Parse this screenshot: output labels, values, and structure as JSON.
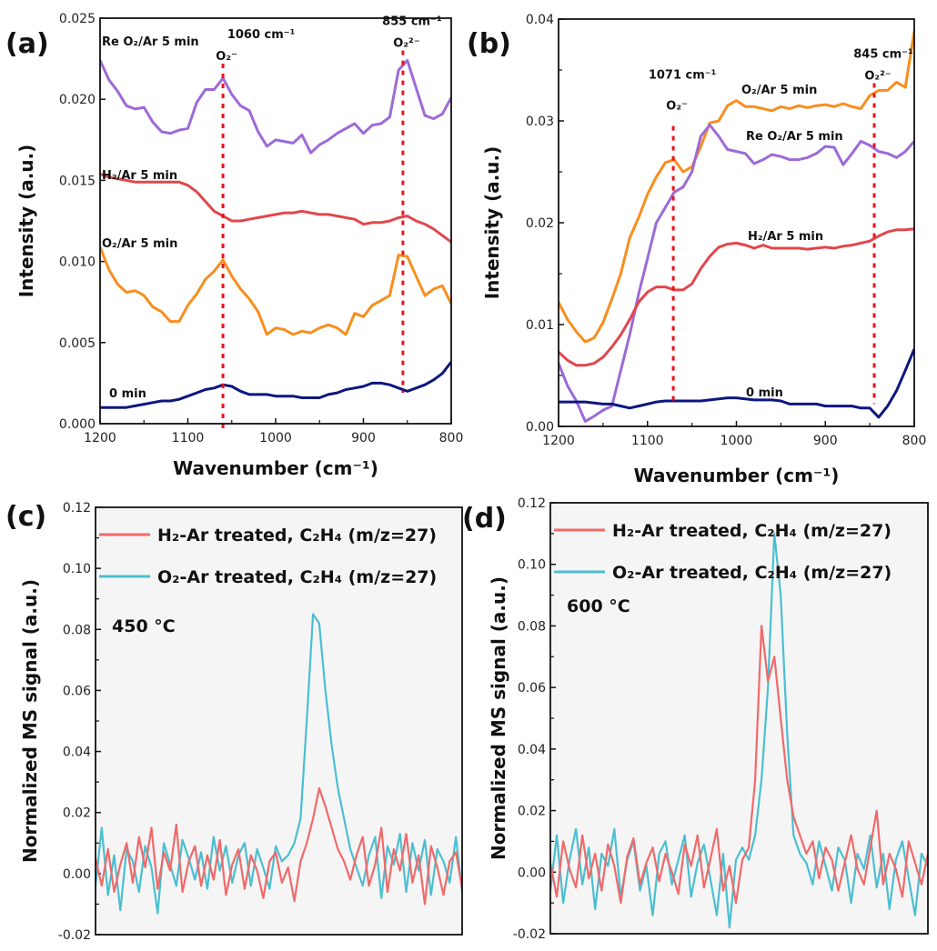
{
  "chart_data": [
    {
      "panel": "(a)",
      "type": "line",
      "xlabel": "Wavenumber (cm⁻¹)",
      "ylabel": "Intensity (a.u.)",
      "xlim": [
        1200,
        800
      ],
      "ylim": [
        0,
        0.025
      ],
      "xticks": [
        1200,
        1100,
        1000,
        900,
        800
      ],
      "xtick_labels": [
        "1200",
        "1100",
        "1000",
        "900",
        "800"
      ],
      "yticks": [
        0,
        0.005,
        0.01,
        0.015,
        0.02,
        0.025
      ],
      "ytick_labels": [
        "0.000",
        "0.005",
        "0.010",
        "0.015",
        "0.020",
        "0.025"
      ],
      "x": [
        1200,
        1190,
        1180,
        1170,
        1160,
        1150,
        1140,
        1130,
        1120,
        1110,
        1100,
        1090,
        1080,
        1070,
        1060,
        1050,
        1040,
        1030,
        1020,
        1010,
        1000,
        990,
        980,
        970,
        960,
        950,
        940,
        930,
        920,
        910,
        900,
        890,
        880,
        870,
        860,
        850,
        840,
        830,
        820,
        810,
        800
      ],
      "series": [
        {
          "name": "Re O₂/Ar 5 min",
          "color": "#9d6ad8",
          "values": [
            0.0224,
            0.0212,
            0.0205,
            0.0196,
            0.0194,
            0.0195,
            0.0186,
            0.018,
            0.0179,
            0.0181,
            0.0182,
            0.0198,
            0.0206,
            0.0206,
            0.0213,
            0.0203,
            0.0196,
            0.0193,
            0.018,
            0.0171,
            0.0175,
            0.0174,
            0.0173,
            0.0178,
            0.0167,
            0.0172,
            0.0175,
            0.0179,
            0.0182,
            0.0185,
            0.0179,
            0.0184,
            0.0185,
            0.0189,
            0.0218,
            0.0224,
            0.0207,
            0.019,
            0.0188,
            0.0191,
            0.0201
          ]
        },
        {
          "name": "H₂/Ar 5 min",
          "color": "#e0474c",
          "values": [
            0.0154,
            0.0152,
            0.0151,
            0.015,
            0.0149,
            0.0149,
            0.0149,
            0.0149,
            0.0149,
            0.0149,
            0.0147,
            0.0143,
            0.0137,
            0.0131,
            0.0128,
            0.0125,
            0.0125,
            0.0126,
            0.0127,
            0.0128,
            0.0129,
            0.013,
            0.013,
            0.0131,
            0.013,
            0.0129,
            0.0129,
            0.0128,
            0.0127,
            0.0126,
            0.0123,
            0.0124,
            0.0124,
            0.0125,
            0.0127,
            0.0128,
            0.0125,
            0.0123,
            0.012,
            0.0116,
            0.0112
          ]
        },
        {
          "name": "O₂/Ar 5 min",
          "color": "#f88e1e",
          "values": [
            0.0109,
            0.0095,
            0.0086,
            0.0081,
            0.0082,
            0.0079,
            0.0072,
            0.0069,
            0.0063,
            0.0063,
            0.0073,
            0.008,
            0.0089,
            0.0094,
            0.0101,
            0.0091,
            0.0083,
            0.0077,
            0.0069,
            0.0055,
            0.0059,
            0.0058,
            0.0055,
            0.0057,
            0.0056,
            0.0059,
            0.0061,
            0.0059,
            0.0055,
            0.0068,
            0.0066,
            0.0073,
            0.0076,
            0.0079,
            0.0104,
            0.0103,
            0.0091,
            0.0079,
            0.0083,
            0.0085,
            0.0074
          ]
        },
        {
          "name": "0 min",
          "color": "#0d1680",
          "values": [
            0.001,
            0.001,
            0.001,
            0.001,
            0.0011,
            0.0012,
            0.0013,
            0.0014,
            0.0014,
            0.0015,
            0.0017,
            0.0019,
            0.0021,
            0.0022,
            0.0024,
            0.0023,
            0.002,
            0.0018,
            0.0018,
            0.0018,
            0.0017,
            0.0017,
            0.0017,
            0.0016,
            0.0016,
            0.0016,
            0.0018,
            0.0019,
            0.0021,
            0.0022,
            0.0023,
            0.0025,
            0.0025,
            0.0024,
            0.0022,
            0.002,
            0.0022,
            0.0024,
            0.0027,
            0.0031,
            0.0038
          ]
        }
      ],
      "annotations": [
        {
          "x": 1060,
          "label": "1060 cm⁻¹",
          "species": "O₂⁻",
          "y_from": 0.0222,
          "y_to": -0.0003
        },
        {
          "x": 855,
          "label": "855 cm⁻¹",
          "species": "O₂²⁻",
          "y_from": 0.023,
          "y_to": 0.0019
        }
      ]
    },
    {
      "panel": "(b)",
      "type": "line",
      "xlabel": "Wavenumber (cm⁻¹)",
      "ylabel": "Intensity (a.u.)",
      "xlim": [
        1200,
        800
      ],
      "ylim": [
        0,
        0.04
      ],
      "xticks": [
        1200,
        1100,
        1000,
        900,
        800
      ],
      "xtick_labels": [
        "1200",
        "1100",
        "1000",
        "900",
        "800"
      ],
      "yticks": [
        0,
        0.01,
        0.02,
        0.03,
        0.04
      ],
      "ytick_labels": [
        "0.00",
        "0.01",
        "0.02",
        "0.03",
        "0.04"
      ],
      "x": [
        1200,
        1190,
        1180,
        1170,
        1160,
        1150,
        1140,
        1130,
        1120,
        1110,
        1100,
        1090,
        1080,
        1070,
        1060,
        1050,
        1040,
        1030,
        1020,
        1010,
        1000,
        990,
        980,
        970,
        960,
        950,
        940,
        930,
        920,
        910,
        900,
        890,
        880,
        870,
        860,
        850,
        840,
        830,
        820,
        810,
        800
      ],
      "series": [
        {
          "name": "O₂/Ar 5 min",
          "color": "#f88e1e",
          "values": [
            0.0122,
            0.0105,
            0.0093,
            0.0083,
            0.0087,
            0.0102,
            0.0125,
            0.015,
            0.0185,
            0.0205,
            0.0228,
            0.0245,
            0.0259,
            0.0262,
            0.025,
            0.0255,
            0.0275,
            0.0298,
            0.03,
            0.0315,
            0.032,
            0.0314,
            0.0314,
            0.0312,
            0.031,
            0.0314,
            0.0312,
            0.0315,
            0.0313,
            0.0315,
            0.0316,
            0.0314,
            0.0317,
            0.0314,
            0.0312,
            0.0325,
            0.033,
            0.033,
            0.0338,
            0.0333,
            0.0388
          ]
        },
        {
          "name": "Re O₂/Ar 5 min",
          "color": "#9d6ad8",
          "values": [
            0.0062,
            0.004,
            0.0025,
            0.0005,
            0.001,
            0.0016,
            0.002,
            0.0055,
            0.009,
            0.013,
            0.0165,
            0.02,
            0.0215,
            0.023,
            0.0235,
            0.025,
            0.0285,
            0.0296,
            0.0285,
            0.0272,
            0.027,
            0.0268,
            0.0258,
            0.0262,
            0.0267,
            0.0265,
            0.0262,
            0.0262,
            0.0264,
            0.0268,
            0.0275,
            0.0274,
            0.0257,
            0.0268,
            0.028,
            0.0276,
            0.027,
            0.0268,
            0.0264,
            0.027,
            0.028
          ]
        },
        {
          "name": "H₂/Ar 5 min",
          "color": "#e0474c",
          "values": [
            0.0073,
            0.0065,
            0.006,
            0.006,
            0.0062,
            0.0068,
            0.0078,
            0.009,
            0.0105,
            0.0122,
            0.0132,
            0.0137,
            0.0137,
            0.0134,
            0.0134,
            0.014,
            0.0155,
            0.0167,
            0.0176,
            0.0179,
            0.018,
            0.0178,
            0.0175,
            0.0178,
            0.0175,
            0.0175,
            0.0175,
            0.0175,
            0.0174,
            0.0175,
            0.0176,
            0.0175,
            0.0177,
            0.0178,
            0.018,
            0.0182,
            0.0187,
            0.0191,
            0.0193,
            0.0193,
            0.0194
          ]
        },
        {
          "name": "0 min",
          "color": "#0d1680",
          "values": [
            0.0024,
            0.0024,
            0.0024,
            0.0024,
            0.0023,
            0.0022,
            0.0022,
            0.002,
            0.0018,
            0.002,
            0.0022,
            0.0024,
            0.0025,
            0.0025,
            0.0025,
            0.0025,
            0.0025,
            0.0026,
            0.0027,
            0.0028,
            0.0028,
            0.0027,
            0.0026,
            0.0026,
            0.0026,
            0.0025,
            0.0022,
            0.0022,
            0.0022,
            0.0022,
            0.002,
            0.002,
            0.002,
            0.002,
            0.0018,
            0.0018,
            0.0009,
            0.002,
            0.0035,
            0.0055,
            0.0076
          ]
        }
      ],
      "annotations": [
        {
          "x": 1071,
          "label": "1071 cm⁻¹",
          "species": "O₂⁻",
          "y_from": 0.0295,
          "y_to": 0.0022
        },
        {
          "x": 845,
          "label": "845 cm⁻¹",
          "species": "O₂²⁻",
          "y_from": 0.0337,
          "y_to": 0.0022
        }
      ]
    },
    {
      "panel": "(c)",
      "type": "line",
      "xlabel": "",
      "ylabel": "Normalized MS signal (a.u.)",
      "annotation_text": "450 °C",
      "xlim": [
        0,
        59
      ],
      "ylim": [
        -0.02,
        0.12
      ],
      "yticks": [
        -0.02,
        0,
        0.02,
        0.04,
        0.06,
        0.08,
        0.1,
        0.12
      ],
      "ytick_labels": [
        "-0.02",
        "0.00",
        "0.02",
        "0.04",
        "0.06",
        "0.08",
        "0.10",
        "0.12"
      ],
      "legend": "top-left",
      "series": [
        {
          "name": "O₂-Ar treated, C₂H₄ (m/z=27)",
          "color": "#4bbfd1",
          "values": [
            -0.004,
            0.015,
            -0.007,
            0.006,
            -0.012,
            0.008,
            0.004,
            -0.006,
            0.009,
            0.002,
            -0.013,
            0.01,
            0.003,
            -0.004,
            0.011,
            0.005,
            -0.002,
            0.007,
            -0.005,
            0.012,
            0.001,
            0.009,
            -0.003,
            0.006,
            0.01,
            -0.004,
            0.008,
            0.002,
            -0.005,
            0.009,
            0.004,
            0.006,
            0.01,
            0.018,
            0.05,
            0.085,
            0.082,
            0.06,
            0.042,
            0.028,
            0.018,
            0.008,
            0.002,
            -0.004,
            0.006,
            0.012,
            -0.008,
            0.009,
            0.003,
            0.013,
            -0.006,
            0.01,
            0.001,
            0.011,
            -0.007,
            0.008,
            0.004,
            -0.003,
            0.012,
            -0.006
          ]
        },
        {
          "name": "H₂-Ar treated, C₂H₄ (m/z=27)",
          "color": "#f06a6a",
          "values": [
            0.005,
            -0.004,
            0.008,
            -0.006,
            0.003,
            0.01,
            -0.003,
            0.012,
            0.002,
            0.015,
            -0.005,
            0.007,
            0.001,
            0.016,
            -0.006,
            0.004,
            0.009,
            -0.004,
            0.006,
            -0.002,
            0.011,
            -0.007,
            0.003,
            0.008,
            -0.005,
            0.006,
            0.001,
            -0.008,
            0.004,
            0.007,
            -0.003,
            0.002,
            -0.009,
            0.004,
            0.01,
            0.018,
            0.028,
            0.022,
            0.015,
            0.008,
            0.004,
            -0.002,
            0.006,
            0.012,
            -0.004,
            0.003,
            0.015,
            -0.006,
            0.008,
            0.001,
            0.013,
            -0.003,
            0.006,
            -0.01,
            0.009,
            0.002,
            -0.007,
            0.004,
            0.007,
            -0.005
          ]
        }
      ]
    },
    {
      "panel": "(d)",
      "type": "line",
      "xlabel": "",
      "ylabel": "Normalized MS signal (a.u.)",
      "annotation_text": "600 °C",
      "xlim": [
        0,
        59
      ],
      "ylim": [
        -0.02,
        0.12
      ],
      "yticks": [
        -0.02,
        0,
        0.02,
        0.04,
        0.06,
        0.08,
        0.1,
        0.12
      ],
      "ytick_labels": [
        "-0.02",
        "0.00",
        "0.02",
        "0.04",
        "0.06",
        "0.08",
        "0.10",
        "0.12"
      ],
      "legend": "top-left",
      "series": [
        {
          "name": "O₂-Ar treated, C₂H₄ (m/z=27)",
          "color": "#4bbfd1",
          "values": [
            -0.006,
            0.012,
            -0.01,
            0.004,
            0.014,
            -0.004,
            0.008,
            -0.012,
            0.006,
            0.002,
            0.014,
            -0.008,
            0.004,
            0.01,
            -0.006,
            0.002,
            -0.014,
            0.006,
            0.01,
            -0.004,
            0.004,
            0.012,
            -0.008,
            0.003,
            0.009,
            -0.002,
            -0.014,
            0.006,
            -0.018,
            0.004,
            0.008,
            0.004,
            0.012,
            0.03,
            0.06,
            0.11,
            0.09,
            0.045,
            0.012,
            0.006,
            0.003,
            -0.004,
            0.01,
            0.002,
            -0.006,
            0.008,
            0.004,
            -0.01,
            0.006,
            0.001,
            0.012,
            -0.005,
            0.006,
            -0.012,
            0.004,
            0.01,
            -0.002,
            -0.014,
            0.006,
            0.002
          ]
        },
        {
          "name": "H₂-Ar treated, C₂H₄ (m/z=27)",
          "color": "#f06a6a",
          "values": [
            0.003,
            -0.008,
            0.01,
            0.001,
            -0.005,
            0.012,
            -0.002,
            0.006,
            -0.006,
            0.009,
            0.002,
            -0.01,
            0.005,
            0.011,
            -0.004,
            0.003,
            0.008,
            -0.003,
            0.006,
            0.0,
            -0.007,
            0.009,
            0.002,
            0.012,
            -0.005,
            0.004,
            0.014,
            -0.006,
            0.002,
            -0.01,
            0.004,
            0.008,
            0.03,
            0.08,
            0.062,
            0.07,
            0.05,
            0.03,
            0.018,
            0.012,
            0.006,
            0.01,
            -0.002,
            0.008,
            0.004,
            -0.006,
            0.003,
            0.012,
            0.001,
            -0.004,
            0.008,
            0.02,
            -0.004,
            0.006,
            0.001,
            -0.008,
            0.01,
            0.003,
            -0.004,
            0.006
          ]
        }
      ]
    }
  ]
}
